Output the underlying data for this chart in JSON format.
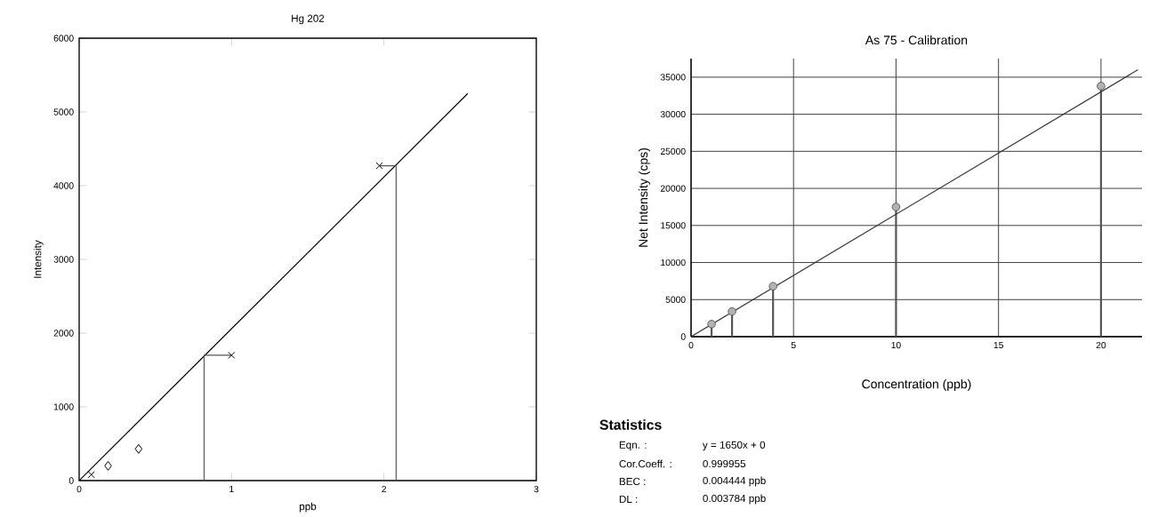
{
  "chart_data": [
    {
      "type": "scatter",
      "title": "Hg 202",
      "xlabel": "ppb",
      "ylabel": "Intensity",
      "xlim": [
        0,
        3
      ],
      "ylim": [
        0,
        6000
      ],
      "xticks": [
        0,
        1,
        2,
        3
      ],
      "yticks": [
        0,
        1000,
        2000,
        3000,
        4000,
        5000,
        6000
      ],
      "grid": false,
      "series": [
        {
          "type": "scatter",
          "marker": "cross",
          "color": "#000000",
          "x": [
            0.08,
            1,
            1.97
          ],
          "values": [
            80,
            1700,
            4270
          ]
        },
        {
          "type": "scatter",
          "marker": "diamond",
          "color": "#000000",
          "x": [
            0.19,
            0.39
          ],
          "values": [
            200,
            430
          ]
        },
        {
          "type": "line",
          "color": "#000000",
          "x": [
            0,
            2.55
          ],
          "values": [
            0,
            5250
          ]
        },
        {
          "type": "line",
          "color": "#555555",
          "x": [
            1,
            0.82,
            0.82
          ],
          "values": [
            1700,
            1700,
            0
          ]
        },
        {
          "type": "line",
          "color": "#555555",
          "x": [
            1.97,
            2.08,
            2.08
          ],
          "values": [
            4270,
            4270,
            0
          ]
        }
      ]
    },
    {
      "type": "lollipop",
      "title": "As 75    -    Calibration",
      "xlabel": "Concentration (ppb)",
      "ylabel": "Net Intensity (cps)",
      "xlim": [
        0,
        22
      ],
      "ylim": [
        0,
        37500
      ],
      "xticks": [
        0,
        5,
        10,
        15,
        20
      ],
      "yticks": [
        0,
        5000,
        10000,
        15000,
        20000,
        25000,
        30000,
        35000
      ],
      "grid": true,
      "annotations": [
        "Statistics",
        "Eqn. :",
        "y = 1650x + 0",
        "Cor.Coeff. :",
        "0.999955",
        "BEC :",
        "0.004444 ppb",
        "DL :",
        "0.003784 ppb"
      ],
      "series": [
        {
          "type": "lollipop",
          "marker": "circle",
          "color": "#555555",
          "x": [
            1,
            2,
            4,
            10,
            20
          ],
          "values": [
            1700,
            3400,
            6800,
            17500,
            33800
          ]
        },
        {
          "type": "line",
          "color": "#333333",
          "x": [
            0,
            21.8
          ],
          "values": [
            0,
            36000
          ]
        }
      ]
    }
  ]
}
